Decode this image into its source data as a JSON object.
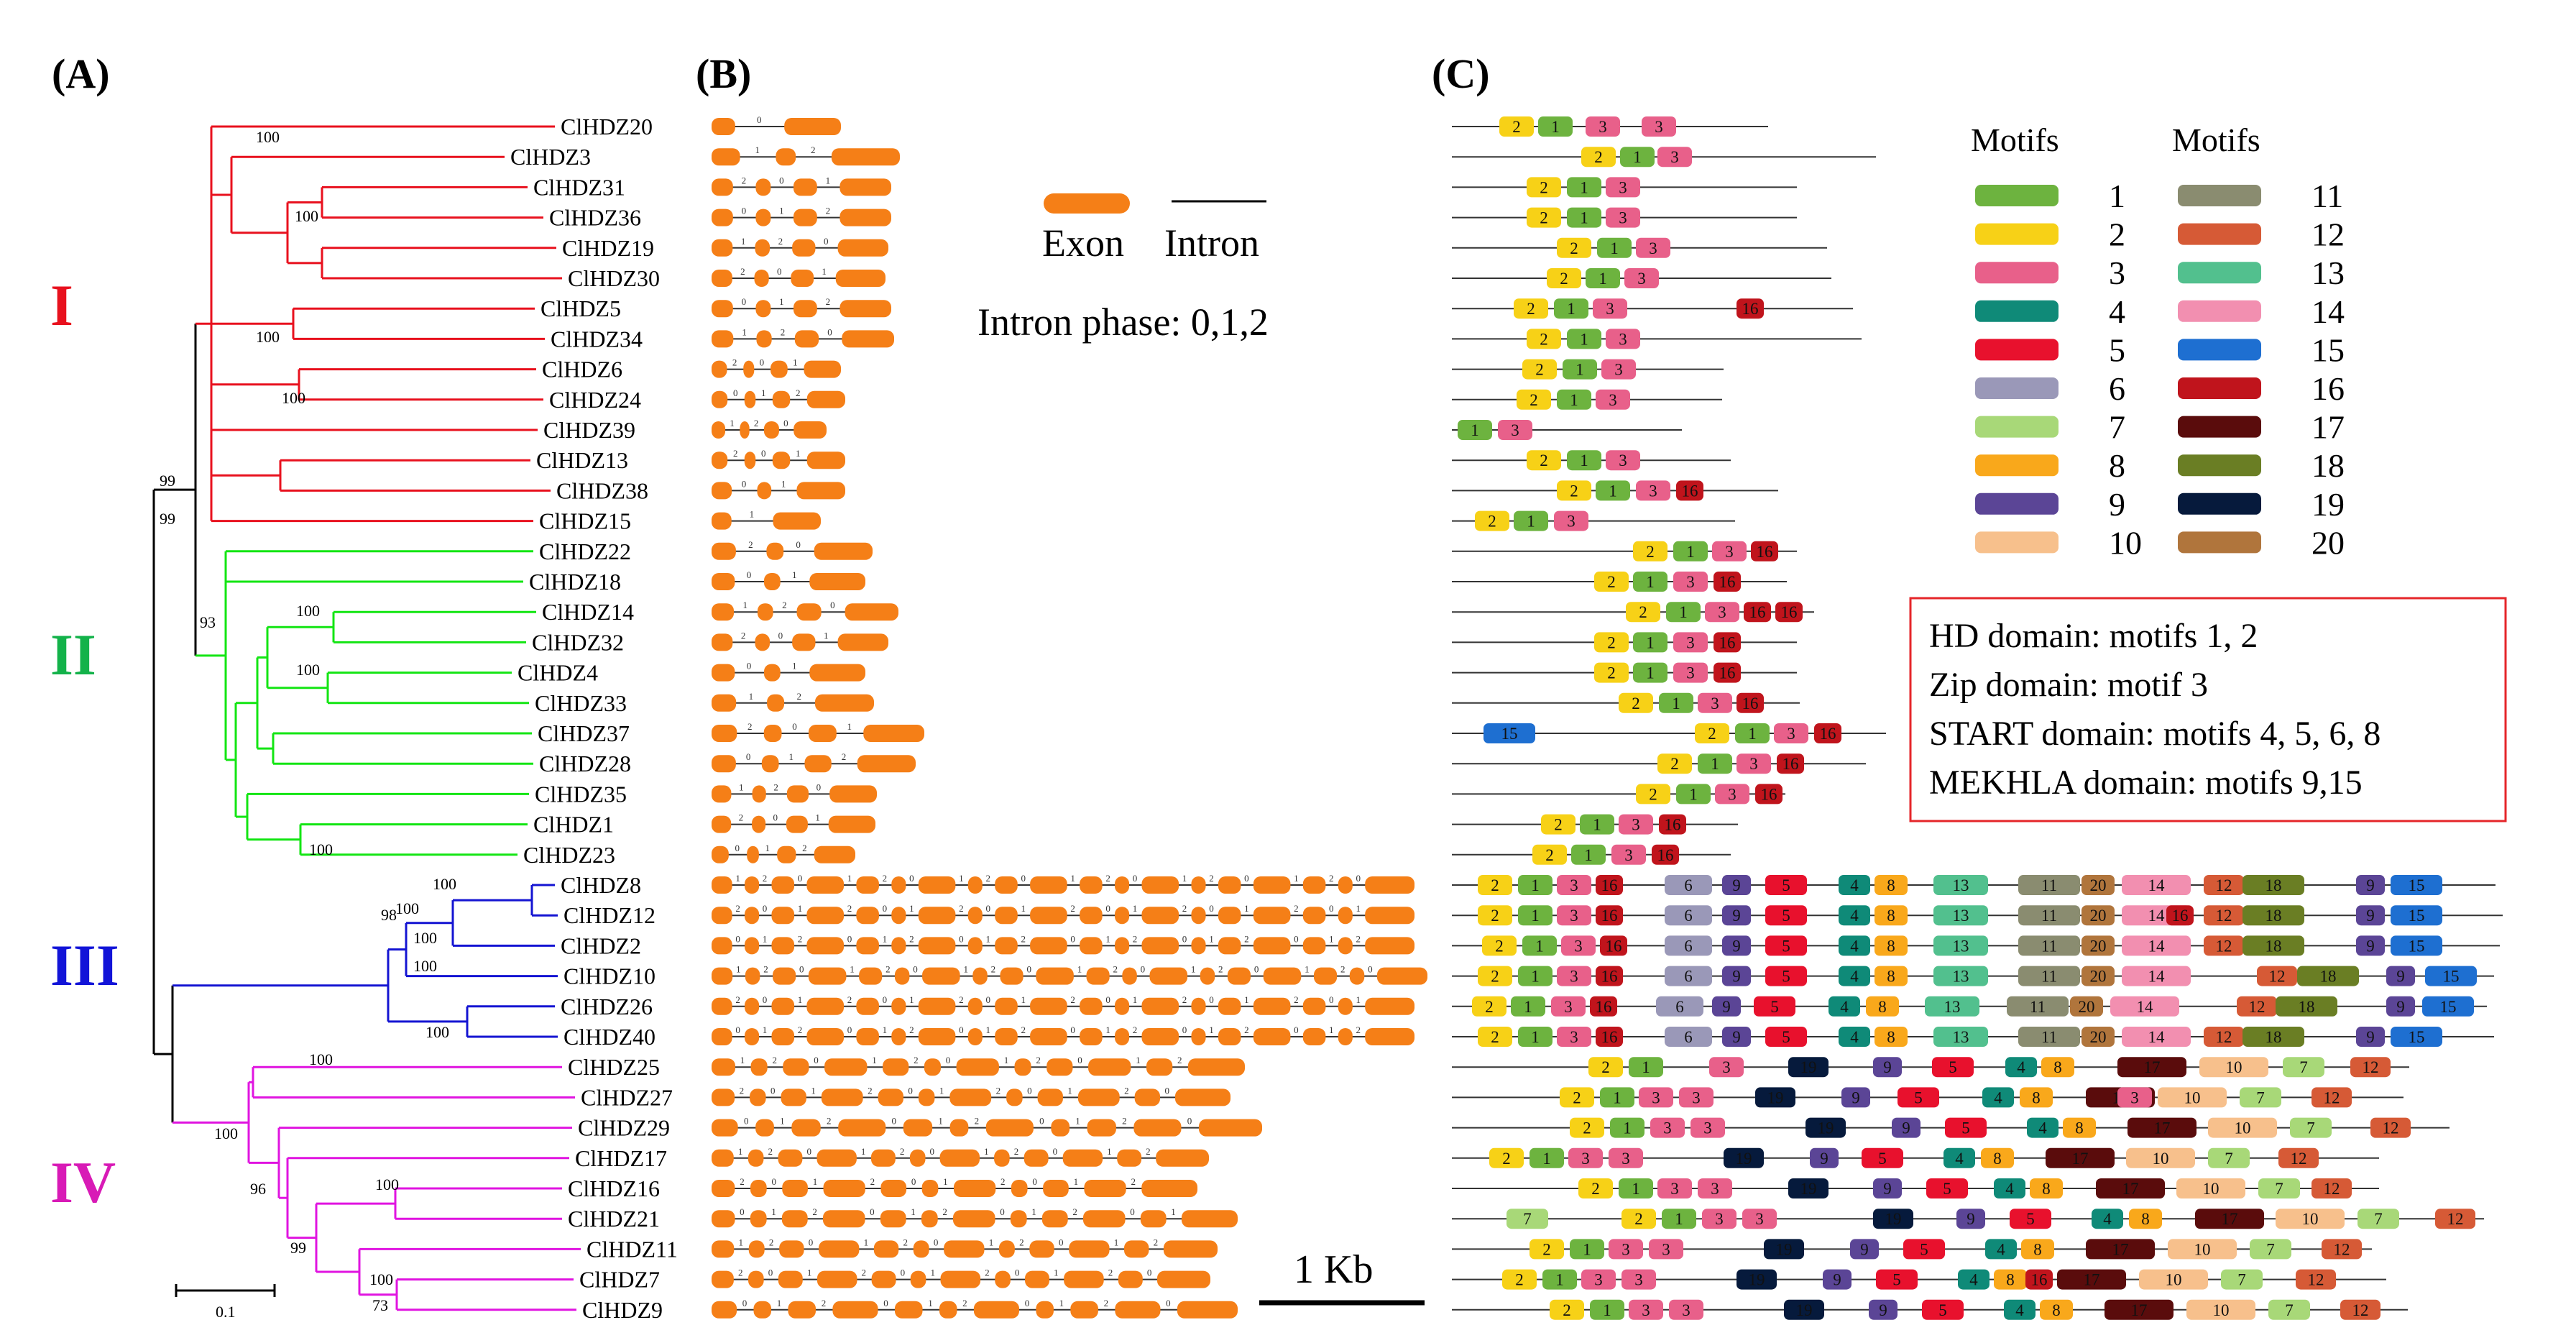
{
  "panels": {
    "A": "(A)",
    "B": "(B)",
    "C": "(C)"
  },
  "tree": {
    "leaves": [
      "ClHDZ20",
      "ClHDZ3",
      "ClHDZ31",
      "ClHDZ36",
      "ClHDZ19",
      "ClHDZ30",
      "ClHDZ5",
      "ClHDZ34",
      "ClHDZ6",
      "ClHDZ24",
      "ClHDZ39",
      "ClHDZ13",
      "ClHDZ38",
      "ClHDZ15",
      "ClHDZ22",
      "ClHDZ18",
      "ClHDZ14",
      "ClHDZ32",
      "ClHDZ4",
      "ClHDZ33",
      "ClHDZ37",
      "ClHDZ28",
      "ClHDZ35",
      "ClHDZ1",
      "ClHDZ23",
      "ClHDZ8",
      "ClHDZ12",
      "ClHDZ2",
      "ClHDZ10",
      "ClHDZ26",
      "ClHDZ40",
      "ClHDZ25",
      "ClHDZ27",
      "ClHDZ29",
      "ClHDZ17",
      "ClHDZ16",
      "ClHDZ21",
      "ClHDZ11",
      "ClHDZ7",
      "ClHDZ9"
    ],
    "groups": [
      {
        "label": "I",
        "color": "#e8111e"
      },
      {
        "label": "II",
        "color": "#13b24a"
      },
      {
        "label": "III",
        "color": "#1214d8"
      },
      {
        "label": "IV",
        "color": "#d81ab6"
      }
    ],
    "branch_colors": {
      "I": "#e8111e",
      "II": "#13e513",
      "III": "#1414d2",
      "IV": "#e014e0",
      "root": "#000000"
    },
    "bootstrap": [
      "100",
      "100",
      "100",
      "100",
      "99",
      "99",
      "93",
      "100",
      "100",
      "100",
      "100",
      "98",
      "100",
      "100",
      "100",
      "100",
      "100",
      "100",
      "96",
      "100",
      "99",
      "100",
      "73"
    ],
    "scale_label": "0.1"
  },
  "gene_structure": {
    "legend": {
      "exon": "Exon",
      "intron": "Intron",
      "phase": "Intron phase: 0,1,2"
    },
    "scale_label": "1 Kb",
    "exon_color": "#f57f17"
  },
  "motifs": {
    "legend_title_1": "Motifs",
    "legend_title_2": "Motifs",
    "items": [
      {
        "n": "1",
        "color": "#6db33f"
      },
      {
        "n": "2",
        "color": "#f7d117"
      },
      {
        "n": "3",
        "color": "#e8608a"
      },
      {
        "n": "4",
        "color": "#0f8a78"
      },
      {
        "n": "5",
        "color": "#e8112d"
      },
      {
        "n": "6",
        "color": "#9a98b8"
      },
      {
        "n": "7",
        "color": "#a8d878"
      },
      {
        "n": "8",
        "color": "#f9a81b"
      },
      {
        "n": "9",
        "color": "#5b4596"
      },
      {
        "n": "10",
        "color": "#f7c08c"
      },
      {
        "n": "11",
        "color": "#8a8c70"
      },
      {
        "n": "12",
        "color": "#d65a36"
      },
      {
        "n": "13",
        "color": "#52c08e"
      },
      {
        "n": "14",
        "color": "#f28fb0"
      },
      {
        "n": "15",
        "color": "#1e6fd1"
      },
      {
        "n": "16",
        "color": "#c0141c"
      },
      {
        "n": "17",
        "color": "#5a0c0c"
      },
      {
        "n": "18",
        "color": "#6a7e24"
      },
      {
        "n": "19",
        "color": "#061a3c"
      },
      {
        "n": "20",
        "color": "#b0753c"
      }
    ],
    "domains": [
      "HD domain: motifs 1, 2",
      "Zip domain:  motif 3",
      "START domain: motifs 4, 5, 6, 8",
      "MEKHLA domain: motifs 9,15"
    ],
    "box_border_color": "#e5262a"
  }
}
